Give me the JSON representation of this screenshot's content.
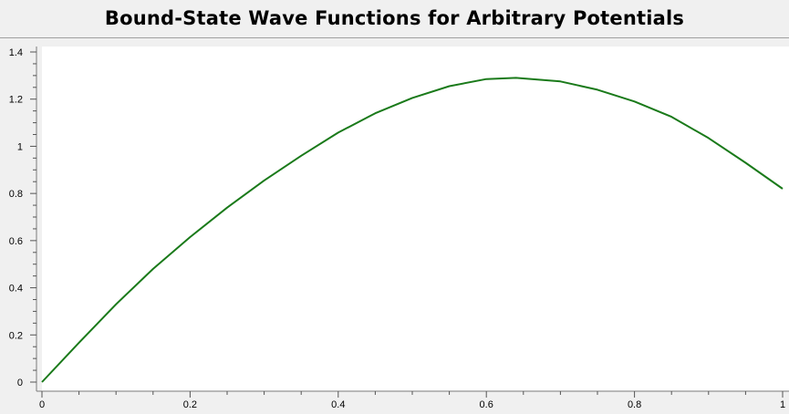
{
  "title": "Bound-State Wave Functions for Arbitrary Potentials",
  "chart_data": {
    "type": "line",
    "title": "Bound-State Wave Functions for Arbitrary Potentials",
    "xlabel": "",
    "ylabel": "",
    "xlim": [
      0,
      1
    ],
    "ylim": [
      0,
      1.4
    ],
    "x_ticks": [
      "0",
      "0.2",
      "0.4",
      "0.6",
      "0.8",
      "1"
    ],
    "y_ticks": [
      "0",
      "0.2",
      "0.4",
      "0.6",
      "0.8",
      "1",
      "1.2",
      "1.4"
    ],
    "grid": false,
    "colors": {
      "line": "#1a7a1a",
      "background": "#ffffff"
    },
    "series": [
      {
        "x": [
          0,
          0.05,
          0.1,
          0.15,
          0.2,
          0.25,
          0.3,
          0.35,
          0.4,
          0.45,
          0.5,
          0.55,
          0.6,
          0.64,
          0.7,
          0.75,
          0.8,
          0.85,
          0.9,
          0.95,
          1.0
        ],
        "values": [
          0.0,
          0.167,
          0.33,
          0.48,
          0.615,
          0.74,
          0.855,
          0.96,
          1.058,
          1.14,
          1.205,
          1.255,
          1.285,
          1.29,
          1.275,
          1.24,
          1.19,
          1.125,
          1.035,
          0.93,
          0.82
        ]
      }
    ]
  }
}
